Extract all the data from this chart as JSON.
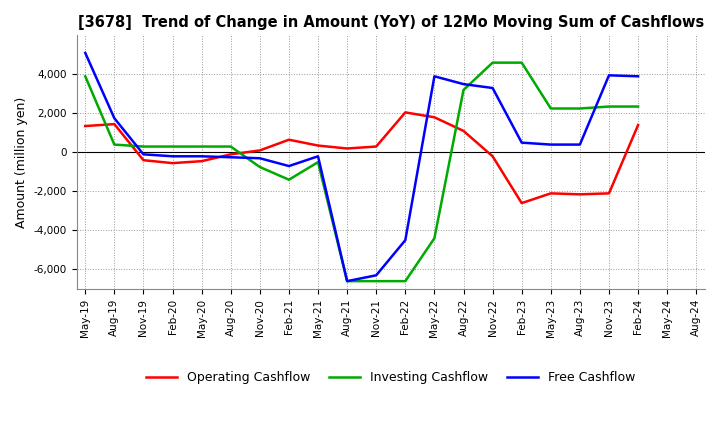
{
  "title": "[3678]  Trend of Change in Amount (YoY) of 12Mo Moving Sum of Cashflows",
  "ylabel": "Amount (million yen)",
  "x_labels": [
    "May-19",
    "Aug-19",
    "Nov-19",
    "Feb-20",
    "May-20",
    "Aug-20",
    "Nov-20",
    "Feb-21",
    "May-21",
    "Aug-21",
    "Nov-21",
    "Feb-22",
    "May-22",
    "Aug-22",
    "Nov-22",
    "Feb-23",
    "May-23",
    "Aug-23",
    "Nov-23",
    "Feb-24",
    "May-24",
    "Aug-24"
  ],
  "operating": [
    1350,
    1450,
    -400,
    -550,
    -450,
    -100,
    100,
    650,
    350,
    200,
    300,
    2050,
    1800,
    1100,
    -200,
    -2600,
    -2100,
    -2150,
    -2100,
    1400,
    null,
    null
  ],
  "investing": [
    3900,
    400,
    300,
    300,
    300,
    300,
    -750,
    -1400,
    -500,
    -6600,
    -6600,
    -6600,
    -4400,
    3200,
    4600,
    4600,
    2250,
    2250,
    2350,
    2350,
    null,
    null
  ],
  "free": [
    5100,
    1750,
    -100,
    -200,
    -200,
    -250,
    -300,
    -700,
    -200,
    -6600,
    -6300,
    -4500,
    3900,
    3500,
    3300,
    500,
    400,
    400,
    3950,
    3900,
    null,
    null
  ],
  "operating_color": "#ff0000",
  "investing_color": "#00aa00",
  "free_color": "#0000ff",
  "ylim": [
    -7000,
    6000
  ],
  "yticks": [
    -6000,
    -4000,
    -2000,
    0,
    2000,
    4000
  ],
  "background_color": "#ffffff",
  "grid_color": "#999999"
}
